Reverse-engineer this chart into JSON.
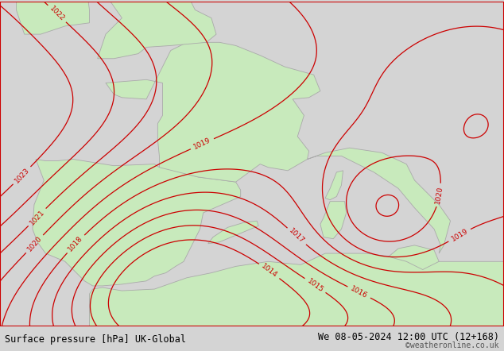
{
  "title_left": "Surface pressure [hPa] UK-Global",
  "title_right": "We 08-05-2024 12:00 UTC (12+168)",
  "credit": "©weatheronline.co.uk",
  "bg_color": "#d4d4d4",
  "land_color": "#c8eabc",
  "sea_color": "#d4d4d4",
  "contour_color": "#cc0000",
  "contour_linewidth": 0.9,
  "border_color": "#aaaaaa",
  "label_fontsize": 6.5,
  "title_fontsize": 8.5,
  "credit_fontsize": 7
}
